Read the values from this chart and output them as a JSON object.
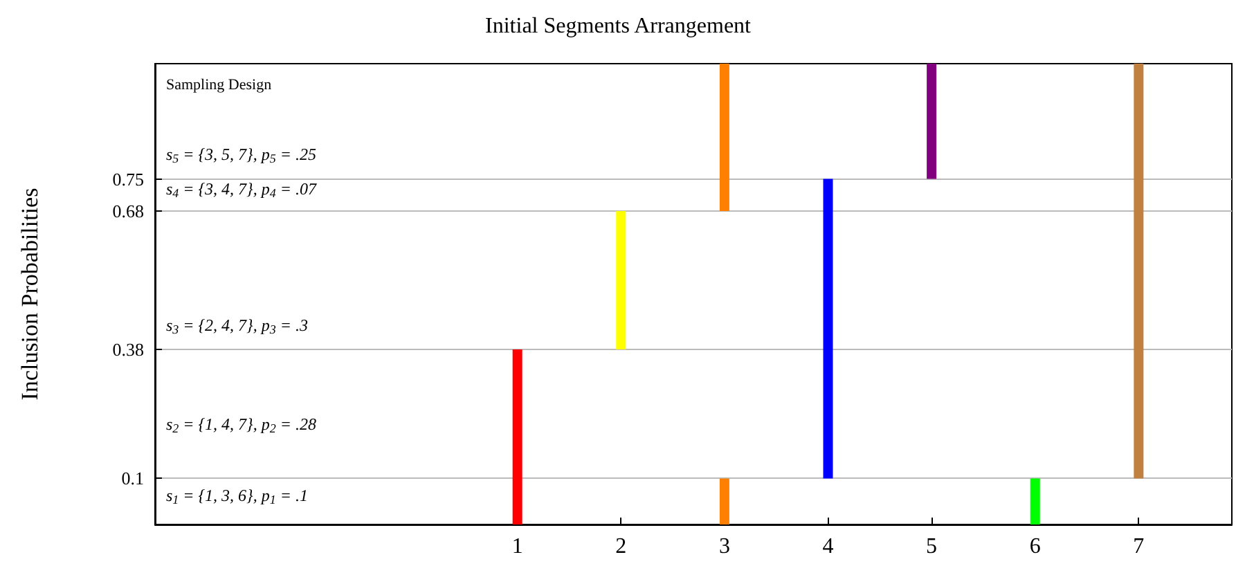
{
  "chart_data": {
    "type": "bar",
    "title": "Initial Segments Arrangement",
    "ylabel": "Inclusion Probabilities",
    "xlim": [
      -2.5,
      7.9
    ],
    "xticks": [
      1,
      2,
      3,
      4,
      5,
      6,
      7
    ],
    "ylim": [
      0,
      1
    ],
    "yticks": [
      0.1,
      0.38,
      0.68,
      0.75
    ],
    "grid": "y",
    "series": [
      {
        "color": "#ff0000",
        "x": [
          1
        ],
        "base": [
          0
        ],
        "values": [
          0.38
        ]
      },
      {
        "color": "#ffff00",
        "x": [
          2
        ],
        "base": [
          0.38
        ],
        "values": [
          0.3
        ]
      },
      {
        "color": "#ff8000",
        "x": [
          3,
          3
        ],
        "base": [
          0,
          0.68
        ],
        "values": [
          0.1,
          0.32
        ]
      },
      {
        "color": "#0000ff",
        "x": [
          4
        ],
        "base": [
          0.1
        ],
        "values": [
          0.65
        ]
      },
      {
        "color": "#800080",
        "x": [
          5
        ],
        "base": [
          0.75
        ],
        "values": [
          0.25
        ]
      },
      {
        "color": "#00ff00",
        "x": [
          6
        ],
        "base": [
          0
        ],
        "values": [
          0.1
        ]
      },
      {
        "color": "#bf8040",
        "x": [
          7
        ],
        "base": [
          0.1
        ],
        "values": [
          0.9
        ]
      }
    ],
    "annotations": [
      "Sampling Design",
      "s$_{1}$ = {1, 3, 6}, p$_{1}$ = .1",
      "s$_{2}$ = {1, 4, 7}, p$_{2}$ = .28",
      "s$_{3}$ = {2, 4, 7}, p$_{3}$ = .3",
      "s$_{4}$ = {3, 4, 7}, p$_{4}$ = .07",
      "s$_{5}$ = {3, 5, 7}, p$_{5}$ = .25"
    ]
  }
}
